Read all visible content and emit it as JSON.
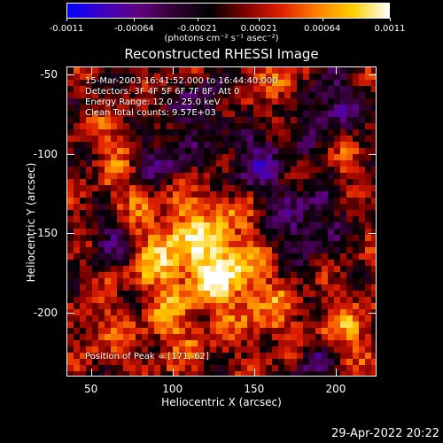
{
  "colorbar": {
    "ticks": [
      "-0.0011",
      "-0.00064",
      "-0.00021",
      "0.00021",
      "0.00064",
      "0.0011"
    ],
    "tick_values": [
      -0.0011,
      -0.00064,
      -0.00021,
      0.00021,
      0.00064,
      0.0011
    ],
    "units": "(photons cm⁻² s⁻¹ asec⁻²)",
    "min": -0.0011,
    "max": 0.0011
  },
  "title": "Reconstructed RHESSI Image",
  "annotations": {
    "time": "15-Mar-2003 16:41:52.000 to 16:44:40.000",
    "detectors": "Detectors: 3F 4F 5F 6F 7F 8F, Att 0",
    "energy": "Energy Range: 12.0 - 25.0 keV",
    "clean": "Clean     Total counts: 9.57E+03",
    "peak": "Position of Peak = [171,-62]"
  },
  "axes": {
    "xlabel": "Heliocentric X (arcsec)",
    "ylabel": "Heliocentric Y (arcsec)",
    "xticks": [
      "50",
      "100",
      "150",
      "200"
    ],
    "xtick_values": [
      50,
      100,
      150,
      200
    ],
    "yticks": [
      "-50",
      "-100",
      "-150",
      "-200"
    ],
    "ytick_values": [
      -50,
      -100,
      -150,
      -200
    ],
    "xlim": [
      35,
      225
    ],
    "ylim": [
      -240,
      -45
    ]
  },
  "timestamp": "29-Apr-2022 20:22",
  "colors": {
    "background": "#000000",
    "foreground": "#ffffff",
    "colormap": [
      "#0000ff",
      "#4000c0",
      "#600080",
      "#300030",
      "#000000",
      "#800000",
      "#e02000",
      "#ff8000",
      "#ffd000",
      "#ffffff"
    ]
  }
}
